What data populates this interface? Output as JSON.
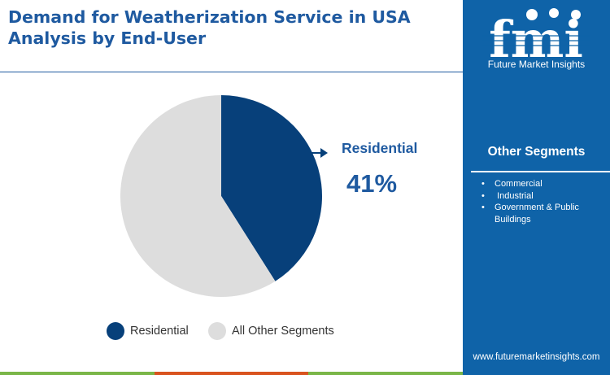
{
  "header": {
    "title_line1": "Demand for Weatherization Service in USA",
    "title_line2": "Analysis by End-User"
  },
  "brand": {
    "logo_letters": "fmi",
    "name": "Future Market Insights",
    "website": "www.futuremarketinsights.com"
  },
  "chart_data": {
    "type": "pie",
    "categories": [
      "Residential",
      "All Other Segments"
    ],
    "values": [
      41,
      59
    ],
    "colors": [
      "#07407a",
      "#dddddd"
    ],
    "legend_placement": "bottom",
    "callout": {
      "label": "Residential",
      "value": "41%"
    }
  },
  "other_segments": {
    "heading": "Other Segments",
    "items": [
      "Commercial",
      " Industrial",
      "Government & Public Buildings"
    ]
  },
  "colors": {
    "title": "#1f5aa0",
    "sidebar": "#0f63a8",
    "accent_bar": [
      "#7ab648",
      "#d9531e",
      "#7ab648"
    ]
  }
}
